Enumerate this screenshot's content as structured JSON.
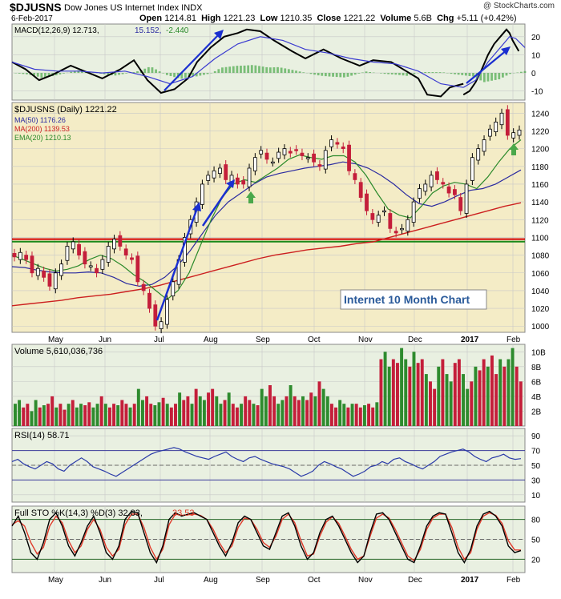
{
  "header": {
    "symbol": "$DJUSNS",
    "name": "Dow Jones US Internet Index",
    "exchange": "INDX",
    "watermark": "@ StockCharts.com",
    "date": "6-Feb-2017",
    "open_label": "Open",
    "open": "1214.81",
    "high_label": "High",
    "high": "1221.23",
    "low_label": "Low",
    "low": "1210.35",
    "close_label": "Close",
    "close": "1221.22",
    "volume_label": "Volume",
    "volume": "5.6B",
    "chg_label": "Chg",
    "chg": "+5.11 (+0.42%)"
  },
  "colors": {
    "panel_bg": "#e9f0e1",
    "price_bg": "#f4ecc6",
    "grid": "#c8c8c8",
    "up": "#2e8b2e",
    "down": "#c41e3a",
    "ma50": "#2a2aa0",
    "ma200": "#cc1f1f",
    "ema20": "#2b8a2b",
    "arrow": "#1a2fd0",
    "red_line": "#d00000",
    "green_line": "#1a8a1a",
    "annotation_text": "#2a5a9a"
  },
  "chart_data": [
    {
      "type": "line",
      "panel": "macd",
      "legend": {
        "macd": "MACD(12,26,9) 12.713,",
        "signal": "15.152,",
        "hist": "-2.440"
      },
      "y_ticks": [
        -10,
        0,
        10,
        20
      ],
      "ylim": [
        -15,
        27
      ],
      "macd_points": [
        [
          0,
          6
        ],
        [
          0.03,
          2
        ],
        [
          0.06,
          -4
        ],
        [
          0.09,
          -1
        ],
        [
          0.13,
          4
        ],
        [
          0.17,
          0
        ],
        [
          0.2,
          -3
        ],
        [
          0.24,
          2
        ],
        [
          0.27,
          7
        ],
        [
          0.3,
          -4
        ],
        [
          0.33,
          -11
        ],
        [
          0.36,
          -9
        ],
        [
          0.39,
          -3
        ],
        [
          0.41,
          6
        ],
        [
          0.44,
          14
        ],
        [
          0.47,
          20
        ],
        [
          0.5,
          22
        ],
        [
          0.52,
          24
        ],
        [
          0.55,
          23
        ],
        [
          0.58,
          18
        ],
        [
          0.62,
          12
        ],
        [
          0.65,
          8
        ],
        [
          0.69,
          13
        ],
        [
          0.73,
          8
        ],
        [
          0.77,
          4
        ],
        [
          0.8,
          7
        ],
        [
          0.84,
          6
        ],
        [
          0.88,
          0
        ],
        [
          0.9,
          -3
        ],
        [
          0.92,
          -12
        ],
        [
          0.95,
          -13
        ],
        [
          0.97,
          -8
        ],
        [
          1.0,
          -6
        ]
      ],
      "signal_points": [
        [
          0,
          6
        ],
        [
          0.05,
          2
        ],
        [
          0.1,
          1
        ],
        [
          0.15,
          1
        ],
        [
          0.2,
          0
        ],
        [
          0.25,
          1
        ],
        [
          0.3,
          -2
        ],
        [
          0.35,
          -6
        ],
        [
          0.4,
          -2
        ],
        [
          0.45,
          8
        ],
        [
          0.5,
          16
        ],
        [
          0.55,
          20
        ],
        [
          0.6,
          18
        ],
        [
          0.65,
          13
        ],
        [
          0.7,
          11
        ],
        [
          0.75,
          8
        ],
        [
          0.8,
          6
        ],
        [
          0.85,
          5
        ],
        [
          0.9,
          1
        ],
        [
          0.95,
          -6
        ],
        [
          1.0,
          -8
        ]
      ],
      "right_points": [
        [
          0,
          -12
        ],
        [
          0.1,
          -10
        ],
        [
          0.2,
          -5
        ],
        [
          0.3,
          2
        ],
        [
          0.4,
          10
        ],
        [
          0.5,
          16
        ],
        [
          0.6,
          20
        ],
        [
          0.7,
          24
        ],
        [
          0.75,
          22
        ],
        [
          0.8,
          18
        ],
        [
          0.85,
          15
        ],
        [
          0.9,
          12
        ]
      ],
      "right_signal": [
        [
          0,
          -8
        ],
        [
          0.2,
          -4
        ],
        [
          0.4,
          6
        ],
        [
          0.6,
          14
        ],
        [
          0.75,
          20
        ],
        [
          0.85,
          19
        ],
        [
          1,
          14
        ]
      ]
    },
    {
      "type": "line",
      "panel": "price",
      "title": "$DJUSNS (Daily) 1221.22",
      "legend": [
        {
          "label": "MA(50) 1176.26",
          "color": "#2a2aa0"
        },
        {
          "label": "MA(200) 1139.53",
          "color": "#cc1f1f"
        },
        {
          "label": "EMA(20) 1210.13",
          "color": "#2b8a2b"
        }
      ],
      "y_ticks": [
        1000,
        1020,
        1040,
        1060,
        1080,
        1100,
        1120,
        1140,
        1160,
        1180,
        1200,
        1220,
        1240
      ],
      "ylim": [
        993,
        1252
      ],
      "x_labels": [
        "May",
        "Jun",
        "Jul",
        "Aug",
        "Sep",
        "Oct",
        "Nov",
        "Dec",
        "2017",
        "Feb"
      ],
      "support_red": 1098,
      "support_green": 1097,
      "annotation": "Internet 10 Month Chart",
      "close": [
        1078,
        1083,
        1075,
        1060,
        1065,
        1055,
        1045,
        1060,
        1070,
        1090,
        1095,
        1080,
        1070,
        1068,
        1060,
        1075,
        1090,
        1098,
        1090,
        1080,
        1075,
        1050,
        1040,
        1020,
        1000,
        1005,
        1030,
        1050,
        1075,
        1100,
        1120,
        1140,
        1160,
        1170,
        1175,
        1178,
        1165,
        1170,
        1160,
        1160,
        1178,
        1190,
        1198,
        1188,
        1185,
        1196,
        1200,
        1195,
        1198,
        1192,
        1190,
        1185,
        1180,
        1198,
        1210,
        1205,
        1200,
        1175,
        1165,
        1145,
        1130,
        1120,
        1125,
        1130,
        1110,
        1105,
        1110,
        1120,
        1140,
        1155,
        1160,
        1170,
        1165,
        1160,
        1150,
        1148,
        1130,
        1160,
        1190,
        1200,
        1210,
        1222,
        1230,
        1240,
        1215,
        1218,
        1221
      ],
      "ma50": [
        1067,
        1066,
        1063,
        1061,
        1060,
        1060,
        1061,
        1060,
        1055,
        1048,
        1045,
        1047,
        1055,
        1068,
        1085,
        1105,
        1125,
        1140,
        1150,
        1160,
        1168,
        1172,
        1175,
        1178,
        1180,
        1182,
        1185,
        1183,
        1178,
        1170,
        1160,
        1148,
        1138,
        1135,
        1140,
        1147,
        1153,
        1155,
        1160,
        1168,
        1176
      ],
      "ma200": [
        1023,
        1025,
        1027,
        1029,
        1032,
        1034,
        1036,
        1039,
        1042,
        1046,
        1051,
        1056,
        1061,
        1066,
        1071,
        1076,
        1080,
        1083,
        1086,
        1088,
        1090,
        1093,
        1095,
        1100,
        1105,
        1110,
        1115,
        1120,
        1125,
        1130,
        1135,
        1139
      ],
      "ema20": [
        1080,
        1075,
        1070,
        1065,
        1062,
        1064,
        1068,
        1075,
        1080,
        1076,
        1068,
        1058,
        1050,
        1040,
        1030,
        1040,
        1060,
        1090,
        1120,
        1145,
        1160,
        1165,
        1162,
        1170,
        1178,
        1188,
        1193,
        1190,
        1188,
        1192,
        1192,
        1185,
        1170,
        1150,
        1132,
        1125,
        1122,
        1135,
        1150,
        1158,
        1162,
        1160,
        1155,
        1168,
        1185,
        1200,
        1210
      ]
    },
    {
      "type": "bar",
      "panel": "volume",
      "legend": "Volume 5,610,036,736",
      "y_ticks": [
        "2B",
        "4B",
        "6B",
        "8B",
        "10B"
      ],
      "ylim": [
        0,
        11
      ],
      "values": [
        3,
        3.5,
        2.5,
        3,
        2,
        3.5,
        2.5,
        2.8,
        3,
        4,
        2.5,
        3,
        2.2,
        3,
        3.5,
        2.5,
        3,
        2.8,
        3.2,
        2.5,
        3,
        4,
        3,
        2.5,
        3,
        2.8,
        3.5,
        3,
        2.5,
        3,
        5,
        3.5,
        4,
        3,
        2.8,
        3.2,
        3.8,
        3,
        2.5,
        3,
        4.5,
        3.5,
        4,
        3,
        5,
        4,
        3.5,
        4.5,
        5,
        4,
        3,
        3.5,
        4.5,
        3,
        2.5,
        3,
        4,
        3.5,
        3,
        2.8,
        5,
        4,
        5.5,
        4,
        3,
        3.5,
        4,
        5.5,
        4,
        3.5,
        4,
        3.5,
        4.5,
        4,
        6,
        5,
        4,
        3,
        2.5,
        3.5,
        3,
        2.5,
        3,
        3,
        2.5,
        2.8,
        3,
        2.5,
        3.2,
        9,
        10,
        8,
        9,
        8.5,
        10.5,
        9,
        8,
        10,
        8.5,
        9,
        7,
        6,
        5,
        8,
        9,
        7,
        6,
        8.5,
        9,
        7,
        5,
        6,
        8,
        7.5,
        9,
        8,
        9.5,
        7,
        9,
        8,
        9,
        10.5,
        8,
        6
      ]
    },
    {
      "type": "line",
      "panel": "rsi",
      "legend": "RSI(14) 58.71",
      "y_ticks": [
        10,
        30,
        50,
        70,
        90
      ],
      "ylim": [
        0,
        100
      ],
      "values": [
        55,
        58,
        52,
        48,
        45,
        50,
        55,
        52,
        45,
        42,
        50,
        55,
        60,
        55,
        48,
        45,
        42,
        38,
        35,
        40,
        45,
        50,
        55,
        60,
        65,
        68,
        70,
        72,
        74,
        72,
        68,
        65,
        62,
        60,
        58,
        62,
        65,
        68,
        62,
        58,
        55,
        60,
        62,
        58,
        55,
        52,
        50,
        48,
        45,
        40,
        35,
        38,
        42,
        50,
        55,
        52,
        48,
        45,
        40,
        35,
        38,
        42,
        48,
        50,
        55,
        52,
        58,
        60,
        55,
        52,
        48,
        45,
        50,
        55,
        62,
        65,
        68,
        70,
        72,
        68,
        62,
        58,
        55,
        60,
        62,
        65,
        60,
        58,
        59
      ]
    },
    {
      "type": "line",
      "panel": "sto",
      "legend": {
        "k": "Full STO %K(14,3) %D(3) 32.83,",
        "d": "33.53"
      },
      "y_ticks": [
        20,
        50,
        80
      ],
      "ylim": [
        0,
        100
      ],
      "k_values": [
        70,
        85,
        60,
        30,
        20,
        45,
        80,
        90,
        70,
        40,
        25,
        45,
        70,
        85,
        60,
        30,
        20,
        40,
        80,
        92,
        90,
        60,
        30,
        15,
        40,
        80,
        90,
        85,
        88,
        90,
        85,
        80,
        60,
        40,
        25,
        45,
        75,
        85,
        80,
        60,
        40,
        35,
        60,
        85,
        90,
        70,
        40,
        20,
        30,
        60,
        80,
        85,
        70,
        50,
        30,
        15,
        25,
        60,
        88,
        90,
        80,
        60,
        40,
        20,
        15,
        40,
        70,
        85,
        90,
        88,
        60,
        30,
        15,
        35,
        70,
        88,
        92,
        85,
        70,
        40,
        30,
        33
      ],
      "d_values": [
        72,
        78,
        70,
        45,
        28,
        38,
        70,
        85,
        75,
        48,
        30,
        40,
        65,
        80,
        65,
        38,
        25,
        35,
        72,
        88,
        88,
        68,
        38,
        20,
        35,
        72,
        88,
        86,
        87,
        88,
        86,
        80,
        65,
        45,
        30,
        40,
        68,
        82,
        80,
        65,
        45,
        38,
        55,
        80,
        88,
        75,
        48,
        25,
        28,
        55,
        76,
        84,
        74,
        55,
        35,
        20,
        25,
        55,
        82,
        88,
        82,
        65,
        45,
        25,
        18,
        35,
        65,
        82,
        88,
        88,
        68,
        38,
        20,
        30,
        65,
        85,
        90,
        86,
        74,
        48,
        34,
        34
      ]
    }
  ]
}
